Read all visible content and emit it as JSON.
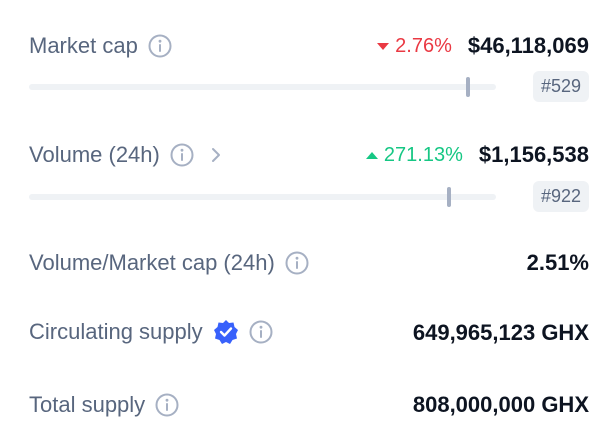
{
  "market_cap": {
    "label": "Market cap",
    "change": "2.76%",
    "change_dir": "down",
    "value": "$46,118,069",
    "rank": "#529",
    "bar_fraction": 0.94
  },
  "volume": {
    "label": "Volume (24h)",
    "change": "271.13%",
    "change_dir": "up",
    "value": "$1,156,538",
    "rank": "#922",
    "bar_fraction": 0.9
  },
  "vol_mcap": {
    "label": "Volume/Market cap (24h)",
    "value": "2.51%"
  },
  "circulating": {
    "label": "Circulating supply",
    "value": "649,965,123 GHX"
  },
  "total": {
    "label": "Total supply",
    "value": "808,000,000 GHX"
  },
  "colors": {
    "down": "#ea3943",
    "up": "#16c784",
    "verified": "#3861fb",
    "label": "#58667e"
  },
  "icons": [
    "info-icon",
    "chevron-right-icon",
    "verified-badge-icon",
    "caret-down-icon",
    "caret-up-icon"
  ]
}
